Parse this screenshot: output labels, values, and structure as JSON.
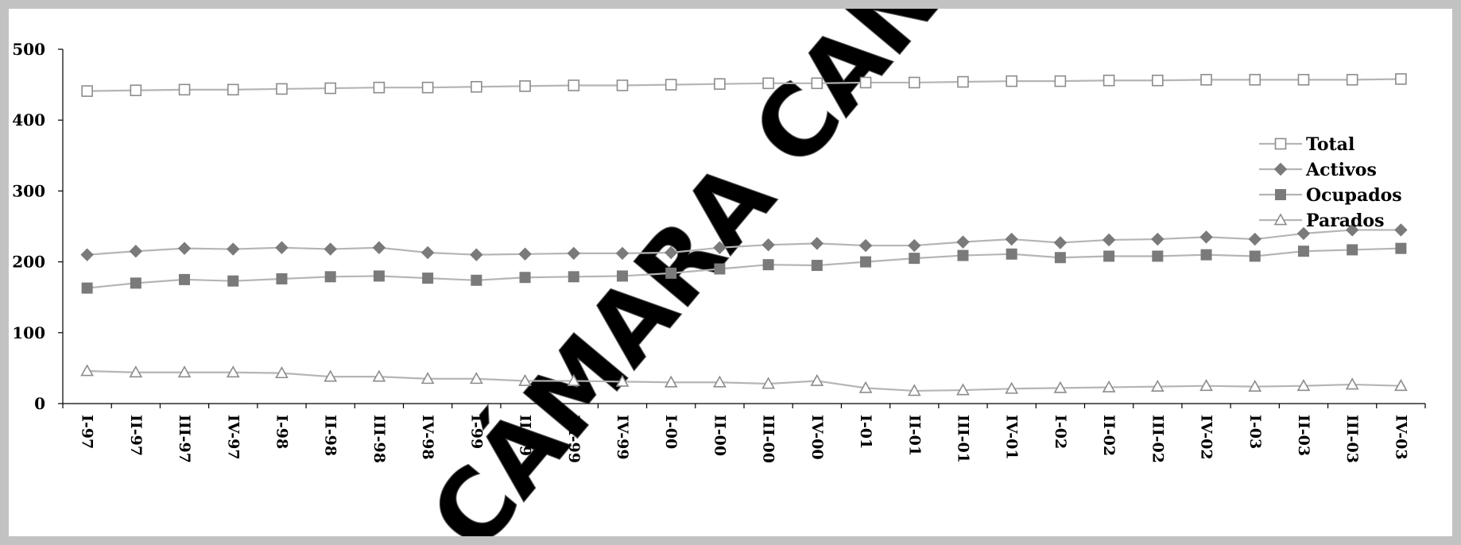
{
  "chart_data": {
    "type": "line",
    "title": "",
    "xlabel": "",
    "ylabel": "",
    "ylim": [
      0,
      500
    ],
    "yticks": [
      "0",
      "100",
      "200",
      "300",
      "400",
      "500"
    ],
    "grid": false,
    "legend_position": "right",
    "watermark": "CÁMARA CANTABRIA",
    "categories": [
      "I-97",
      "II-97",
      "III-97",
      "IV-97",
      "I-98",
      "II-98",
      "III-98",
      "IV-98",
      "I-99",
      "II-99",
      "III-99",
      "IV-99",
      "I-00",
      "II-00",
      "III-00",
      "IV-00",
      "I-01",
      "II-01",
      "III-01",
      "IV-01",
      "I-02",
      "II-02",
      "III-02",
      "IV-02",
      "I-03",
      "II-03",
      "III-03",
      "IV-03"
    ],
    "series": [
      {
        "name": "Total",
        "marker": "square-open",
        "color": "#8c8c8c",
        "values": [
          441,
          442,
          443,
          443,
          444,
          445,
          446,
          446,
          447,
          448,
          449,
          449,
          450,
          451,
          452,
          452,
          453,
          453,
          454,
          455,
          455,
          456,
          456,
          457,
          457,
          457,
          457,
          458
        ]
      },
      {
        "name": "Activos",
        "marker": "diamond",
        "color": "#7a7a7a",
        "values": [
          210,
          215,
          219,
          218,
          220,
          218,
          220,
          213,
          210,
          211,
          212,
          212,
          213,
          220,
          224,
          226,
          223,
          223,
          228,
          232,
          227,
          231,
          232,
          235,
          232,
          240,
          245,
          245
        ]
      },
      {
        "name": "Ocupados",
        "marker": "square-filled",
        "color": "#7a7a7a",
        "values": [
          163,
          170,
          175,
          173,
          176,
          179,
          180,
          177,
          174,
          178,
          179,
          180,
          184,
          190,
          196,
          195,
          200,
          205,
          209,
          211,
          206,
          208,
          208,
          210,
          208,
          215,
          217,
          219
        ]
      },
      {
        "name": "Parados",
        "marker": "triangle-open",
        "color": "#8c8c8c",
        "values": [
          46,
          44,
          44,
          44,
          43,
          38,
          38,
          35,
          35,
          32,
          32,
          31,
          30,
          30,
          28,
          32,
          22,
          18,
          19,
          21,
          22,
          23,
          24,
          25,
          24,
          25,
          27,
          25
        ]
      }
    ]
  }
}
